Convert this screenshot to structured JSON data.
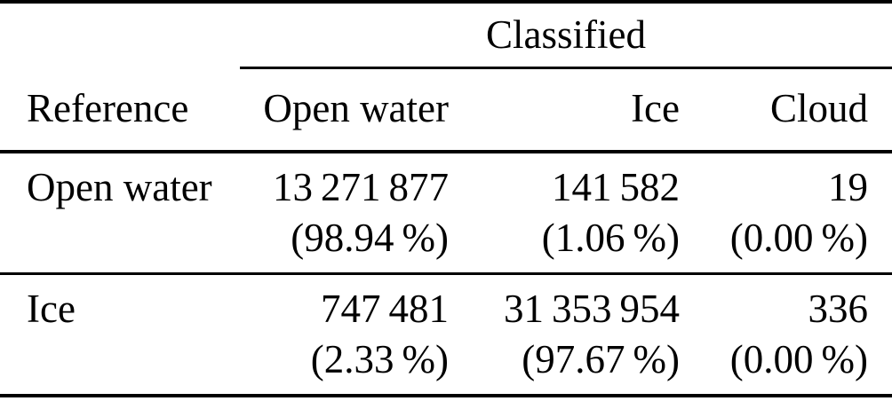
{
  "table": {
    "spanner_label": "Classified",
    "reference_label": "Reference",
    "columns": [
      "Open water",
      "Ice",
      "Cloud"
    ],
    "rows": [
      {
        "label": "Open water",
        "cells": [
          {
            "count": "13 271 877",
            "percent": "(98.94 %)"
          },
          {
            "count": "141 582",
            "percent": "(1.06 %)"
          },
          {
            "count": "19",
            "percent": "(0.00 %)"
          }
        ]
      },
      {
        "label": "Ice",
        "cells": [
          {
            "count": "747 481",
            "percent": "(2.33 %)"
          },
          {
            "count": "31 353 954",
            "percent": "(97.67 %)"
          },
          {
            "count": "336",
            "percent": "(0.00 %)"
          }
        ]
      }
    ]
  },
  "colors": {
    "text": "#000000",
    "background": "#ffffff",
    "rule": "#000000"
  }
}
